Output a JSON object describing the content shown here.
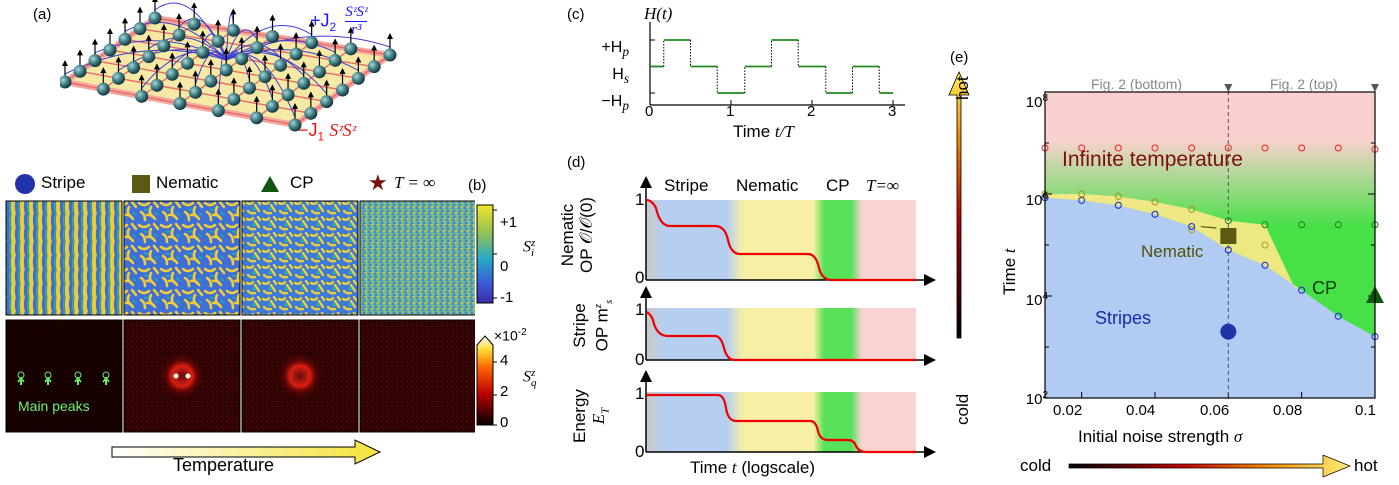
{
  "panel_labels": {
    "a": "(a)",
    "b": "(b)",
    "c": "(c)",
    "d": "(d)",
    "e": "(e)"
  },
  "a": {
    "j2_sign": "+J",
    "j2_sub": "2",
    "j2_num": "SᶻSᶻ",
    "j2_den": "r³",
    "j1_sign": "−J",
    "j1_sub": "1",
    "j1_expr": "SᶻSᶻ"
  },
  "b": {
    "legend": {
      "stripe": "Stripe",
      "nematic": "Nematic",
      "cp": "CP",
      "tinf": "T = ∞"
    },
    "spin_colorbar": {
      "ticks": [
        "+1",
        "0",
        "-1"
      ],
      "label": "S",
      "label_sup": "z",
      "label_sub": "i"
    },
    "sq_colorbar": {
      "exponent": "×10",
      "exponent_pow": "-2",
      "ticks": [
        "4",
        "2",
        "0"
      ],
      "label": "S",
      "label_sup": "z",
      "label_sub": "q"
    },
    "main_peaks": "Main peaks",
    "temperature_arrow": "Temperature"
  },
  "c": {
    "ylabel": "H(t)",
    "yticks": [
      "+H",
      "H",
      "−H"
    ],
    "ytick_subs": [
      "p",
      "s",
      "p"
    ],
    "xticks": [
      "0",
      "1",
      "2",
      "3"
    ],
    "xlabel_prefix": "Time ",
    "xlabel_var": "t/T",
    "chart_data": {
      "type": "line",
      "x": [
        0,
        0.17,
        0.17,
        0.5,
        0.5,
        0.83,
        0.83,
        1.17,
        1.17,
        1.5,
        1.5,
        1.83,
        1.83,
        2.17,
        2.17,
        2.5,
        2.5,
        2.83,
        2.83,
        3.0
      ],
      "y": [
        0,
        0,
        1,
        1,
        0,
        0,
        -1,
        -1,
        0,
        0,
        1,
        1,
        0,
        0,
        -1,
        -1,
        0,
        0,
        -1,
        -1
      ],
      "ylim": [
        -1.3,
        1.3
      ],
      "xlim": [
        0,
        3
      ]
    }
  },
  "d": {
    "phases": [
      "Stripe",
      "Nematic",
      "CP",
      "T=∞"
    ],
    "panel1": {
      "ylabel1": "Nematic",
      "ylabel2": "OP 𝒪/𝒪(0)",
      "ytick_top": "1",
      "ytick_bot": "0"
    },
    "panel2": {
      "ylabel1": "Stripe",
      "ylabel2": "OP m",
      "ylabel2_sub": "s",
      "ylabel2_sup": "z",
      "ytick_top": "1",
      "ytick_bot": "0"
    },
    "panel3": {
      "ylabel1": "Energy",
      "ylabel2": "E",
      "ylabel2_sub": "T",
      "ytick_top": "1",
      "ytick_bot": "0"
    },
    "xlabel_prefix": "Time ",
    "xlabel_var": "t",
    "xlabel_suffix": " (logscale)"
  },
  "e": {
    "top_labels": [
      "Fig. 2 (bottom)",
      "Fig. 2 (top)"
    ],
    "region_labels": {
      "inf": "Infinite temperature",
      "cp": "CP",
      "stripes": "Stripes",
      "nematic": "Nematic"
    },
    "hot": "hot",
    "cold": "cold",
    "ylabel_prefix": "Time ",
    "ylabel_var": "t",
    "xlabel_prefix": "Initial noise strength ",
    "xlabel_var": "σ",
    "xticks": [
      "0.02",
      "0.04",
      "0.06",
      "0.08",
      "0.1"
    ],
    "yticks": [
      "10",
      "10",
      "10",
      "10"
    ],
    "ytick_pows": [
      "2",
      "4",
      "6",
      "8"
    ],
    "bottom_cold": "cold",
    "bottom_hot": "hot",
    "chart_data": {
      "type": "scatter",
      "xlim": [
        0.01,
        0.1
      ],
      "ylim_log10": [
        2,
        8
      ],
      "series": [
        {
          "x": [
            0.01,
            0.02,
            0.03,
            0.04,
            0.05,
            0.06,
            0.07,
            0.08,
            0.09,
            0.1
          ],
          "y": [
            8000000.0,
            8000000.0,
            8000000.0,
            8000000.0,
            8000000.0,
            8000000.0,
            8000000.0,
            8000000.0,
            8000000.0,
            7500000.0
          ]
        },
        {
          "x": [
            0.01,
            0.02,
            0.03,
            0.04,
            0.05,
            0.06,
            0.07,
            0.08,
            0.09,
            0.1
          ],
          "y": [
            1000000.0,
            1000000.0,
            900000.0,
            700000.0,
            500000.0,
            300000.0,
            250000.0,
            250000.0,
            250000.0,
            250000.0
          ]
        },
        {
          "x": [
            0.05,
            0.06,
            0.07
          ],
          "y": [
            200000.0,
            130000.0,
            100000.0
          ]
        },
        {
          "x": [
            0.01,
            0.02,
            0.03,
            0.04,
            0.05,
            0.06,
            0.07,
            0.08,
            0.09,
            0.1
          ],
          "y": [
            850000.0,
            750000.0,
            600000.0,
            400000.0,
            230000.0,
            80000.0,
            40000.0,
            13000.0,
            4000.0,
            1600.0
          ]
        }
      ],
      "markers": [
        {
          "shape": "circle",
          "x": 0.06,
          "y": 2000
        },
        {
          "shape": "square",
          "x": 0.06,
          "y": 150000
        },
        {
          "shape": "triangle",
          "x": 0.1,
          "y": 10000
        }
      ]
    }
  }
}
